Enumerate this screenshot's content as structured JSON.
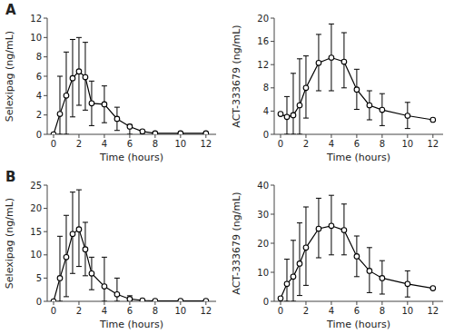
{
  "chart_data": [
    {
      "type": "line",
      "title": "A",
      "x": [
        0,
        0.5,
        1,
        1.5,
        2,
        2.5,
        3,
        4,
        5,
        6,
        7,
        8,
        10,
        12
      ],
      "series": [
        {
          "color": "#000000",
          "marker": "open-circle",
          "line_style": "solid",
          "values": [
            0.0,
            2.1,
            4.0,
            5.8,
            6.5,
            5.9,
            3.2,
            3.1,
            1.6,
            0.8,
            0.3,
            0.1,
            0.1,
            0.1
          ],
          "upper": [
            0.0,
            6.0,
            8.5,
            9.8,
            10.0,
            9.5,
            5.5,
            5.0,
            2.8,
            1.0,
            0.4,
            0.2,
            0.2,
            0.2
          ],
          "lower": [
            0.0,
            0.0,
            0.0,
            1.8,
            3.0,
            2.5,
            0.9,
            1.2,
            0.4,
            0.0,
            0.0,
            0.0,
            0.0,
            0.0
          ]
        }
      ],
      "xlabel": "Time (hours)",
      "ylabel": "Selexipag (ng/mL)",
      "xlim": [
        -0.5,
        12.8
      ],
      "ylim": [
        0,
        12
      ],
      "xticks": [
        0,
        2,
        4,
        6,
        8,
        10,
        12
      ],
      "yticks": [
        0,
        2,
        4,
        6,
        8,
        10,
        12
      ]
    },
    {
      "type": "line",
      "x": [
        0,
        0.5,
        1,
        1.5,
        2,
        3,
        4,
        5,
        6,
        7,
        8,
        10,
        12
      ],
      "series": [
        {
          "color": "#000000",
          "marker": "open-circle",
          "line_style": "solid",
          "values": [
            3.5,
            3.0,
            3.3,
            5.0,
            8.0,
            12.3,
            13.2,
            12.5,
            7.7,
            5.0,
            4.2,
            3.2,
            2.5
          ],
          "upper": [
            3.5,
            6.5,
            10.5,
            13.0,
            13.5,
            17.2,
            19.0,
            17.5,
            11.2,
            7.5,
            7.0,
            5.5,
            2.5
          ],
          "lower": [
            3.5,
            0.0,
            0.0,
            0.0,
            2.8,
            7.5,
            7.5,
            8.0,
            4.3,
            2.5,
            1.5,
            1.0,
            2.5
          ]
        }
      ],
      "xlabel": "Time (hours)",
      "ylabel": "ACT-333679 (ng/mL)",
      "xlim": [
        -0.5,
        12.8
      ],
      "ylim": [
        0,
        20
      ],
      "xticks": [
        0,
        2,
        4,
        6,
        8,
        10,
        12
      ],
      "yticks": [
        0,
        4,
        8,
        12,
        16,
        20
      ]
    },
    {
      "type": "line",
      "title": "B",
      "x": [
        0,
        0.5,
        1,
        1.5,
        2,
        2.5,
        3,
        4,
        5,
        6,
        7,
        8,
        10,
        12
      ],
      "series": [
        {
          "color": "#000000",
          "marker": "open-circle",
          "line_style": "solid",
          "values": [
            0.0,
            5.0,
            9.5,
            14.5,
            15.5,
            11.2,
            6.0,
            3.2,
            1.5,
            0.5,
            0.2,
            0.1,
            0.1,
            0.1
          ],
          "upper": [
            0.0,
            14.0,
            18.5,
            23.5,
            24.0,
            17.0,
            9.5,
            9.5,
            5.0,
            1.2,
            0.3,
            0.2,
            0.2,
            0.2
          ],
          "lower": [
            0.0,
            0.0,
            1.0,
            6.0,
            7.5,
            5.5,
            2.5,
            0.0,
            0.0,
            0.0,
            0.0,
            0.0,
            0.0,
            0.0
          ]
        }
      ],
      "xlabel": "Time (hours)",
      "ylabel": "Selexipag (ng/mL)",
      "xlim": [
        -0.5,
        12.8
      ],
      "ylim": [
        0,
        25
      ],
      "xticks": [
        0,
        2,
        4,
        6,
        8,
        10,
        12
      ],
      "yticks": [
        0,
        5,
        10,
        15,
        20,
        25
      ]
    },
    {
      "type": "line",
      "x": [
        0,
        0.5,
        1,
        1.5,
        2,
        3,
        4,
        5,
        6,
        7,
        8,
        10,
        12
      ],
      "series": [
        {
          "color": "#000000",
          "marker": "open-circle",
          "line_style": "solid",
          "values": [
            1.0,
            6.0,
            8.5,
            13.0,
            18.5,
            25.0,
            26.0,
            24.5,
            15.5,
            10.5,
            8.0,
            6.0,
            4.5
          ],
          "upper": [
            1.0,
            14.5,
            21.0,
            27.0,
            32.5,
            35.5,
            36.5,
            33.5,
            22.5,
            18.5,
            14.0,
            10.5,
            4.5
          ],
          "lower": [
            1.0,
            0.0,
            0.0,
            2.0,
            5.5,
            15.0,
            16.0,
            16.0,
            8.5,
            3.0,
            2.5,
            1.5,
            4.5
          ]
        }
      ],
      "xlabel": "Time (hours)",
      "ylabel": "ACT-333679 (ng/mL)",
      "xlim": [
        -0.5,
        12.8
      ],
      "ylim": [
        0,
        40
      ],
      "xticks": [
        0,
        2,
        4,
        6,
        8,
        10,
        12
      ],
      "yticks": [
        0,
        10,
        20,
        30,
        40
      ]
    }
  ]
}
